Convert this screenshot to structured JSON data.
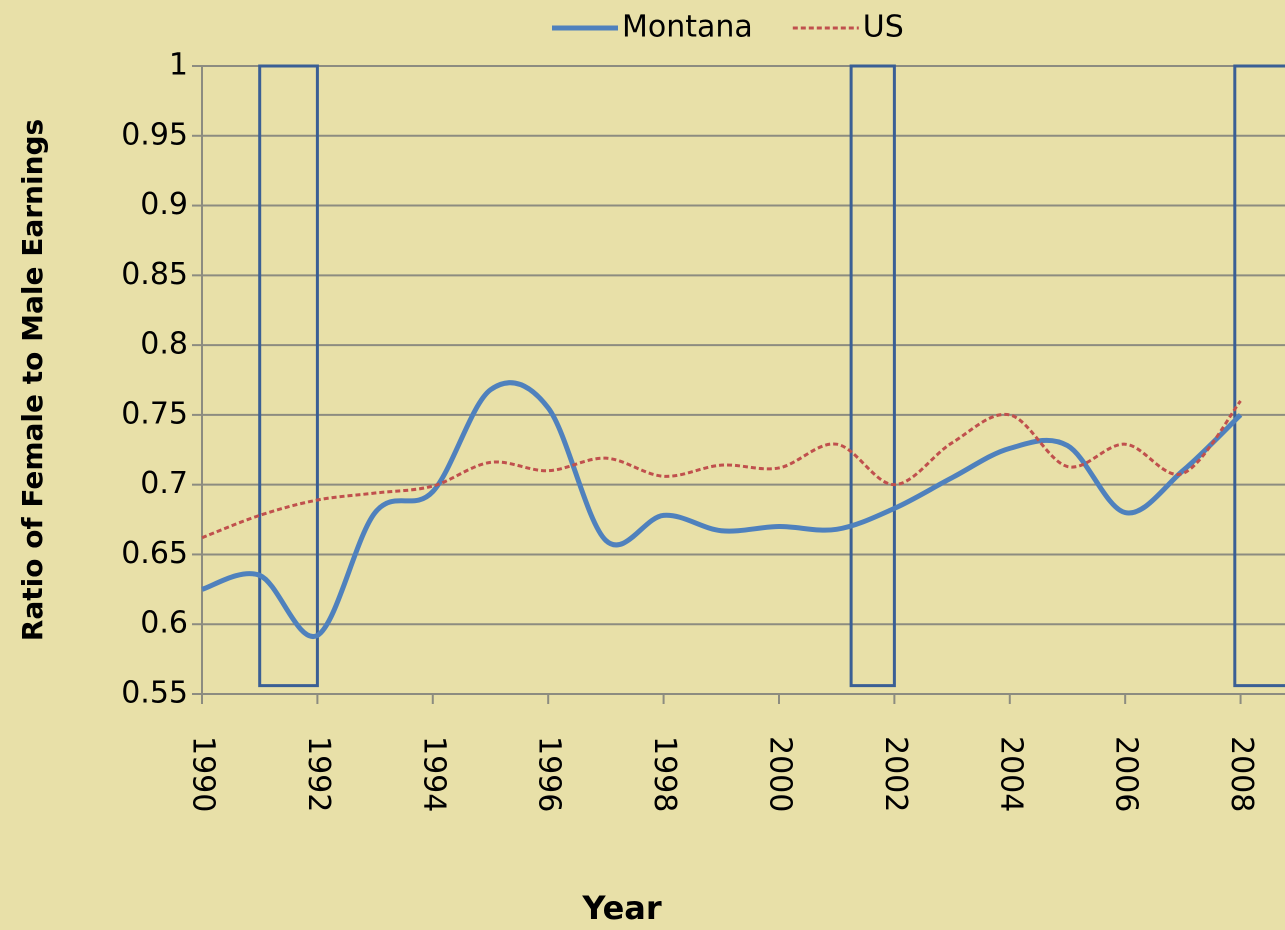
{
  "chart_data": {
    "type": "line",
    "x_label": "Year",
    "y_label": "Ratio of Female to Male Earnings",
    "x": [
      1990,
      1991,
      1992,
      1993,
      1994,
      1995,
      1996,
      1997,
      1998,
      1999,
      2000,
      2001,
      2002,
      2003,
      2004,
      2005,
      2006,
      2007,
      2008
    ],
    "series": [
      {
        "name": "Montana",
        "color": "#4f81bd",
        "values": [
          0.625,
          0.635,
          0.592,
          0.68,
          0.695,
          0.768,
          0.755,
          0.66,
          0.678,
          0.667,
          0.67,
          0.668,
          0.683,
          0.705,
          0.726,
          0.728,
          0.68,
          0.71,
          0.75
        ]
      },
      {
        "name": "US",
        "color": "#c0504d",
        "dashed": true,
        "values": [
          0.662,
          0.678,
          0.689,
          0.694,
          0.699,
          0.716,
          0.71,
          0.719,
          0.706,
          0.714,
          0.712,
          0.729,
          0.7,
          0.73,
          0.75,
          0.713,
          0.729,
          0.708,
          0.76
        ]
      }
    ],
    "recessions": [
      {
        "start": 1991,
        "end": 1992
      },
      {
        "start": 2001.25,
        "end": 2002
      },
      {
        "start": 2007.9,
        "end": 2010
      }
    ],
    "recession_range": [
      0.556,
      1.0
    ],
    "recession_color": "#3a5f95",
    "xlim": [
      1990,
      2008.77
    ],
    "xticks": [
      1990,
      1992,
      1994,
      1996,
      1998,
      2000,
      2002,
      2004,
      2006,
      2008
    ],
    "ylim": [
      0.55,
      1.0
    ],
    "yticks": [
      0.55,
      0.6,
      0.65,
      0.7,
      0.75,
      0.8,
      0.85,
      0.9,
      0.95,
      1.0
    ],
    "grid": true,
    "legend": "top"
  }
}
